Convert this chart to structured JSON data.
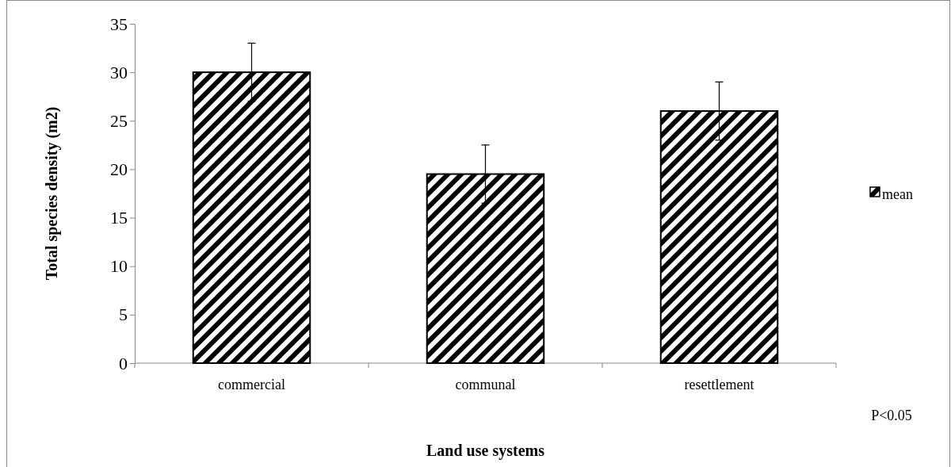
{
  "chart_data": {
    "type": "bar",
    "xlabel": "Land use systems",
    "ylabel": "Total species density (m2)",
    "categories": [
      "commercial",
      "communal",
      "resettlement"
    ],
    "series": [
      {
        "name": "mean",
        "color": "#000000",
        "values": [
          30,
          19.5,
          26
        ],
        "errors": [
          3,
          3,
          3
        ]
      }
    ],
    "ylim": [
      0,
      35
    ],
    "yticks": [
      0,
      5,
      10,
      15,
      20,
      25,
      30,
      35
    ],
    "legend": "right",
    "annotations": [
      "P<0.05"
    ]
  }
}
